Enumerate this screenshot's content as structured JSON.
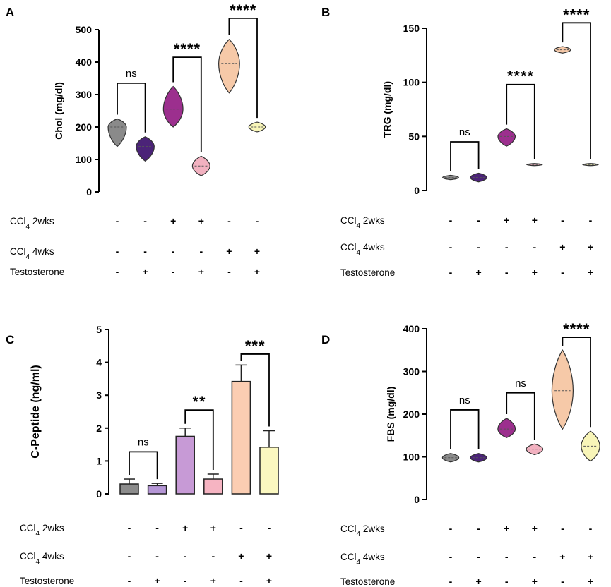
{
  "figure": {
    "conditions": {
      "labels": [
        "CCl4 2wks",
        "CCl4 4wks",
        "Testosterone"
      ],
      "ccl4_prefix": "CCl",
      "ccl4_subscript": "4",
      "ccl4_suffixes": [
        " 2wks",
        " 4wks"
      ],
      "testosterone_label": "Testosterone",
      "signs": [
        [
          "-",
          "-",
          "+",
          "+",
          "-",
          "-"
        ],
        [
          "-",
          "-",
          "-",
          "-",
          "+",
          "+"
        ],
        [
          "-",
          "+",
          "-",
          "+",
          "-",
          "+"
        ]
      ]
    },
    "colors": {
      "groups": [
        "#8a8a8a",
        "#4b2378",
        "#9c2f8e",
        "#f2b1c0",
        "#f6c9a8",
        "#f8f5b8"
      ],
      "bar_fills": [
        "#8c8c8c",
        "#b596d6",
        "#c79ad6",
        "#f6b4c2",
        "#fbcdb2",
        "#fbf8c0"
      ]
    }
  },
  "chart_data": [
    {
      "panel": "A",
      "type": "violin",
      "title": "",
      "ylabel": "Chol (mg/dl)",
      "ylim": [
        0,
        500
      ],
      "yticks": [
        "0",
        "100",
        "200",
        "300",
        "400",
        "500"
      ],
      "groups": [
        {
          "median": 200,
          "min": 140,
          "max": 225
        },
        {
          "median": 140,
          "min": 95,
          "max": 170
        },
        {
          "median": 255,
          "min": 200,
          "max": 325
        },
        {
          "median": 80,
          "min": 50,
          "max": 110
        },
        {
          "median": 395,
          "min": 305,
          "max": 470
        },
        {
          "median": 200,
          "min": 185,
          "max": 215
        }
      ],
      "comparisons": [
        {
          "from": 0,
          "to": 1,
          "label": "ns",
          "y": 335
        },
        {
          "from": 2,
          "to": 3,
          "label": "****",
          "y": 415
        },
        {
          "from": 4,
          "to": 5,
          "label": "****",
          "y": 535
        }
      ]
    },
    {
      "panel": "B",
      "type": "violin",
      "title": "",
      "ylabel": "TRG (mg/dl)",
      "ylim": [
        0,
        150
      ],
      "yticks": [
        "0",
        "50",
        "100",
        "150"
      ],
      "groups": [
        {
          "median": 12,
          "min": 10,
          "max": 14
        },
        {
          "median": 12,
          "min": 8,
          "max": 16
        },
        {
          "median": 50,
          "min": 41,
          "max": 57
        },
        {
          "median": 24,
          "min": 23,
          "max": 25
        },
        {
          "median": 130,
          "min": 127,
          "max": 133
        },
        {
          "median": 24,
          "min": 23,
          "max": 25
        }
      ],
      "comparisons": [
        {
          "from": 0,
          "to": 1,
          "label": "ns",
          "y": 45
        },
        {
          "from": 2,
          "to": 3,
          "label": "****",
          "y": 98
        },
        {
          "from": 4,
          "to": 5,
          "label": "****",
          "y": 155
        }
      ]
    },
    {
      "panel": "C",
      "type": "bar",
      "title": "",
      "ylabel": "C-Peptide (ng/ml)",
      "ylim": [
        0,
        5
      ],
      "yticks": [
        "0",
        "1",
        "2",
        "3",
        "4",
        "5"
      ],
      "values": [
        0.3,
        0.25,
        1.75,
        0.45,
        3.42,
        1.42
      ],
      "errors": [
        0.15,
        0.07,
        0.25,
        0.15,
        0.5,
        0.5
      ],
      "comparisons": [
        {
          "from": 0,
          "to": 1,
          "label": "ns",
          "y": 1.28
        },
        {
          "from": 2,
          "to": 3,
          "label": "**",
          "y": 2.55
        },
        {
          "from": 4,
          "to": 5,
          "label": "***",
          "y": 4.25
        }
      ]
    },
    {
      "panel": "D",
      "type": "violin",
      "title": "",
      "ylabel": "FBS (mg/dl)",
      "ylim": [
        0,
        400
      ],
      "yticks": [
        "0",
        "100",
        "200",
        "300",
        "400"
      ],
      "groups": [
        {
          "median": 98,
          "min": 88,
          "max": 108
        },
        {
          "median": 98,
          "min": 88,
          "max": 108
        },
        {
          "median": 165,
          "min": 145,
          "max": 190
        },
        {
          "median": 118,
          "min": 105,
          "max": 130
        },
        {
          "median": 255,
          "min": 165,
          "max": 350
        },
        {
          "median": 125,
          "min": 90,
          "max": 160
        }
      ],
      "comparisons": [
        {
          "from": 0,
          "to": 1,
          "label": "ns",
          "y": 210
        },
        {
          "from": 2,
          "to": 3,
          "label": "ns",
          "y": 250
        },
        {
          "from": 4,
          "to": 5,
          "label": "****",
          "y": 380
        }
      ]
    }
  ]
}
